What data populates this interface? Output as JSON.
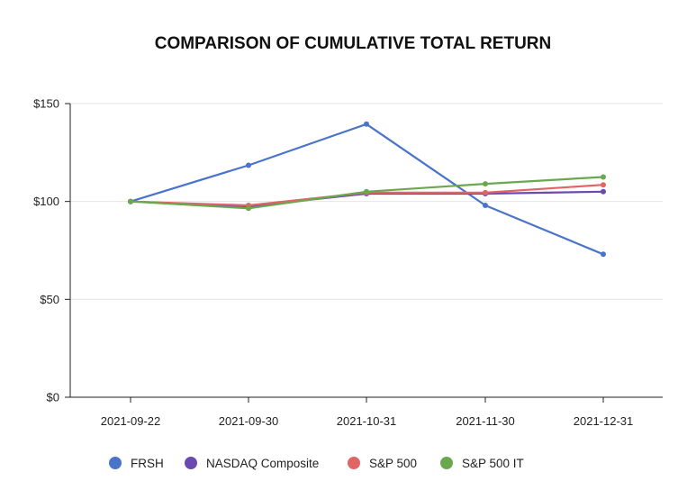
{
  "chart_data": {
    "type": "line",
    "title": "COMPARISON OF CUMULATIVE TOTAL RETURN",
    "xlabel": "",
    "ylabel": "",
    "categories": [
      "2021-09-22",
      "2021-09-30",
      "2021-10-31",
      "2021-11-30",
      "2021-12-31"
    ],
    "ylim": [
      0,
      150
    ],
    "yticks": [
      0,
      50,
      100,
      150
    ],
    "ytick_labels": [
      "$0",
      "$50",
      "$100",
      "$150"
    ],
    "grid": true,
    "legend_position": "bottom",
    "series": [
      {
        "name": "FRSH",
        "color": "#4a74c9",
        "values": [
          100,
          118.5,
          139.5,
          98,
          73
        ]
      },
      {
        "name": "NASDAQ Composite",
        "color": "#6a4ab0",
        "values": [
          100,
          97.5,
          104,
          104,
          105
        ]
      },
      {
        "name": "S&P 500",
        "color": "#e06666",
        "values": [
          100,
          98,
          104.5,
          104.5,
          108.5
        ]
      },
      {
        "name": "S&P 500 IT",
        "color": "#6aa84f",
        "values": [
          100,
          96.5,
          105,
          109,
          112.5
        ]
      }
    ]
  }
}
